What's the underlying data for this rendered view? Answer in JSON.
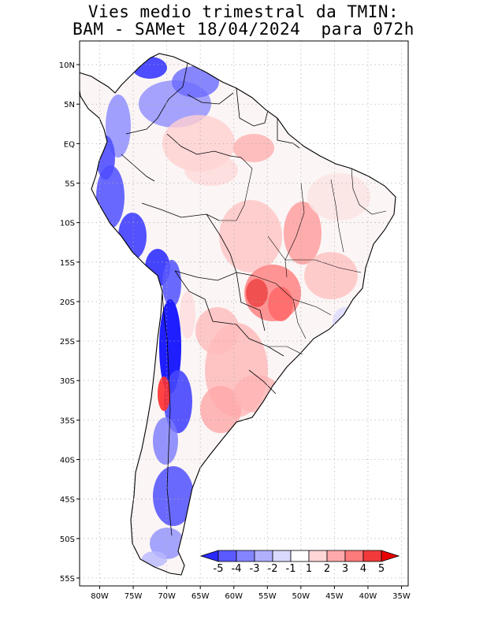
{
  "title_line1": "Vies medio trimestral da TMIN:",
  "title_line2": "BAM - SAMet 18/04/2024  para 072h",
  "map": {
    "lon_range": [
      -83,
      -34
    ],
    "lat_range": [
      -56,
      13
    ],
    "lon_ticks": [
      "80W",
      "75W",
      "70W",
      "65W",
      "60W",
      "55W",
      "50W",
      "45W",
      "40W",
      "35W"
    ],
    "lon_values": [
      -80,
      -75,
      -70,
      -65,
      -60,
      -55,
      -50,
      -45,
      -40,
      -35
    ],
    "lat_ticks": [
      "10N",
      "5N",
      "EQ",
      "5S",
      "10S",
      "15S",
      "20S",
      "25S",
      "30S",
      "35S",
      "40S",
      "45S",
      "50S",
      "55S"
    ],
    "lat_values": [
      10,
      5,
      0,
      -5,
      -10,
      -15,
      -20,
      -25,
      -30,
      -35,
      -40,
      -45,
      -50,
      -55
    ],
    "grid": true
  },
  "colorbar": {
    "labels": [
      "-5",
      "-4",
      "-3",
      "-2",
      "-1",
      "1",
      "2",
      "3",
      "4",
      "5"
    ],
    "colors": [
      "#2a2aff",
      "#5a5aff",
      "#8484ff",
      "#b0b0ff",
      "#dadaff",
      "#ffffff",
      "#ffd6d6",
      "#ffaaaa",
      "#ff7a7a",
      "#f23a3a",
      "#e60000"
    ],
    "placement": "bottom-inside"
  }
}
